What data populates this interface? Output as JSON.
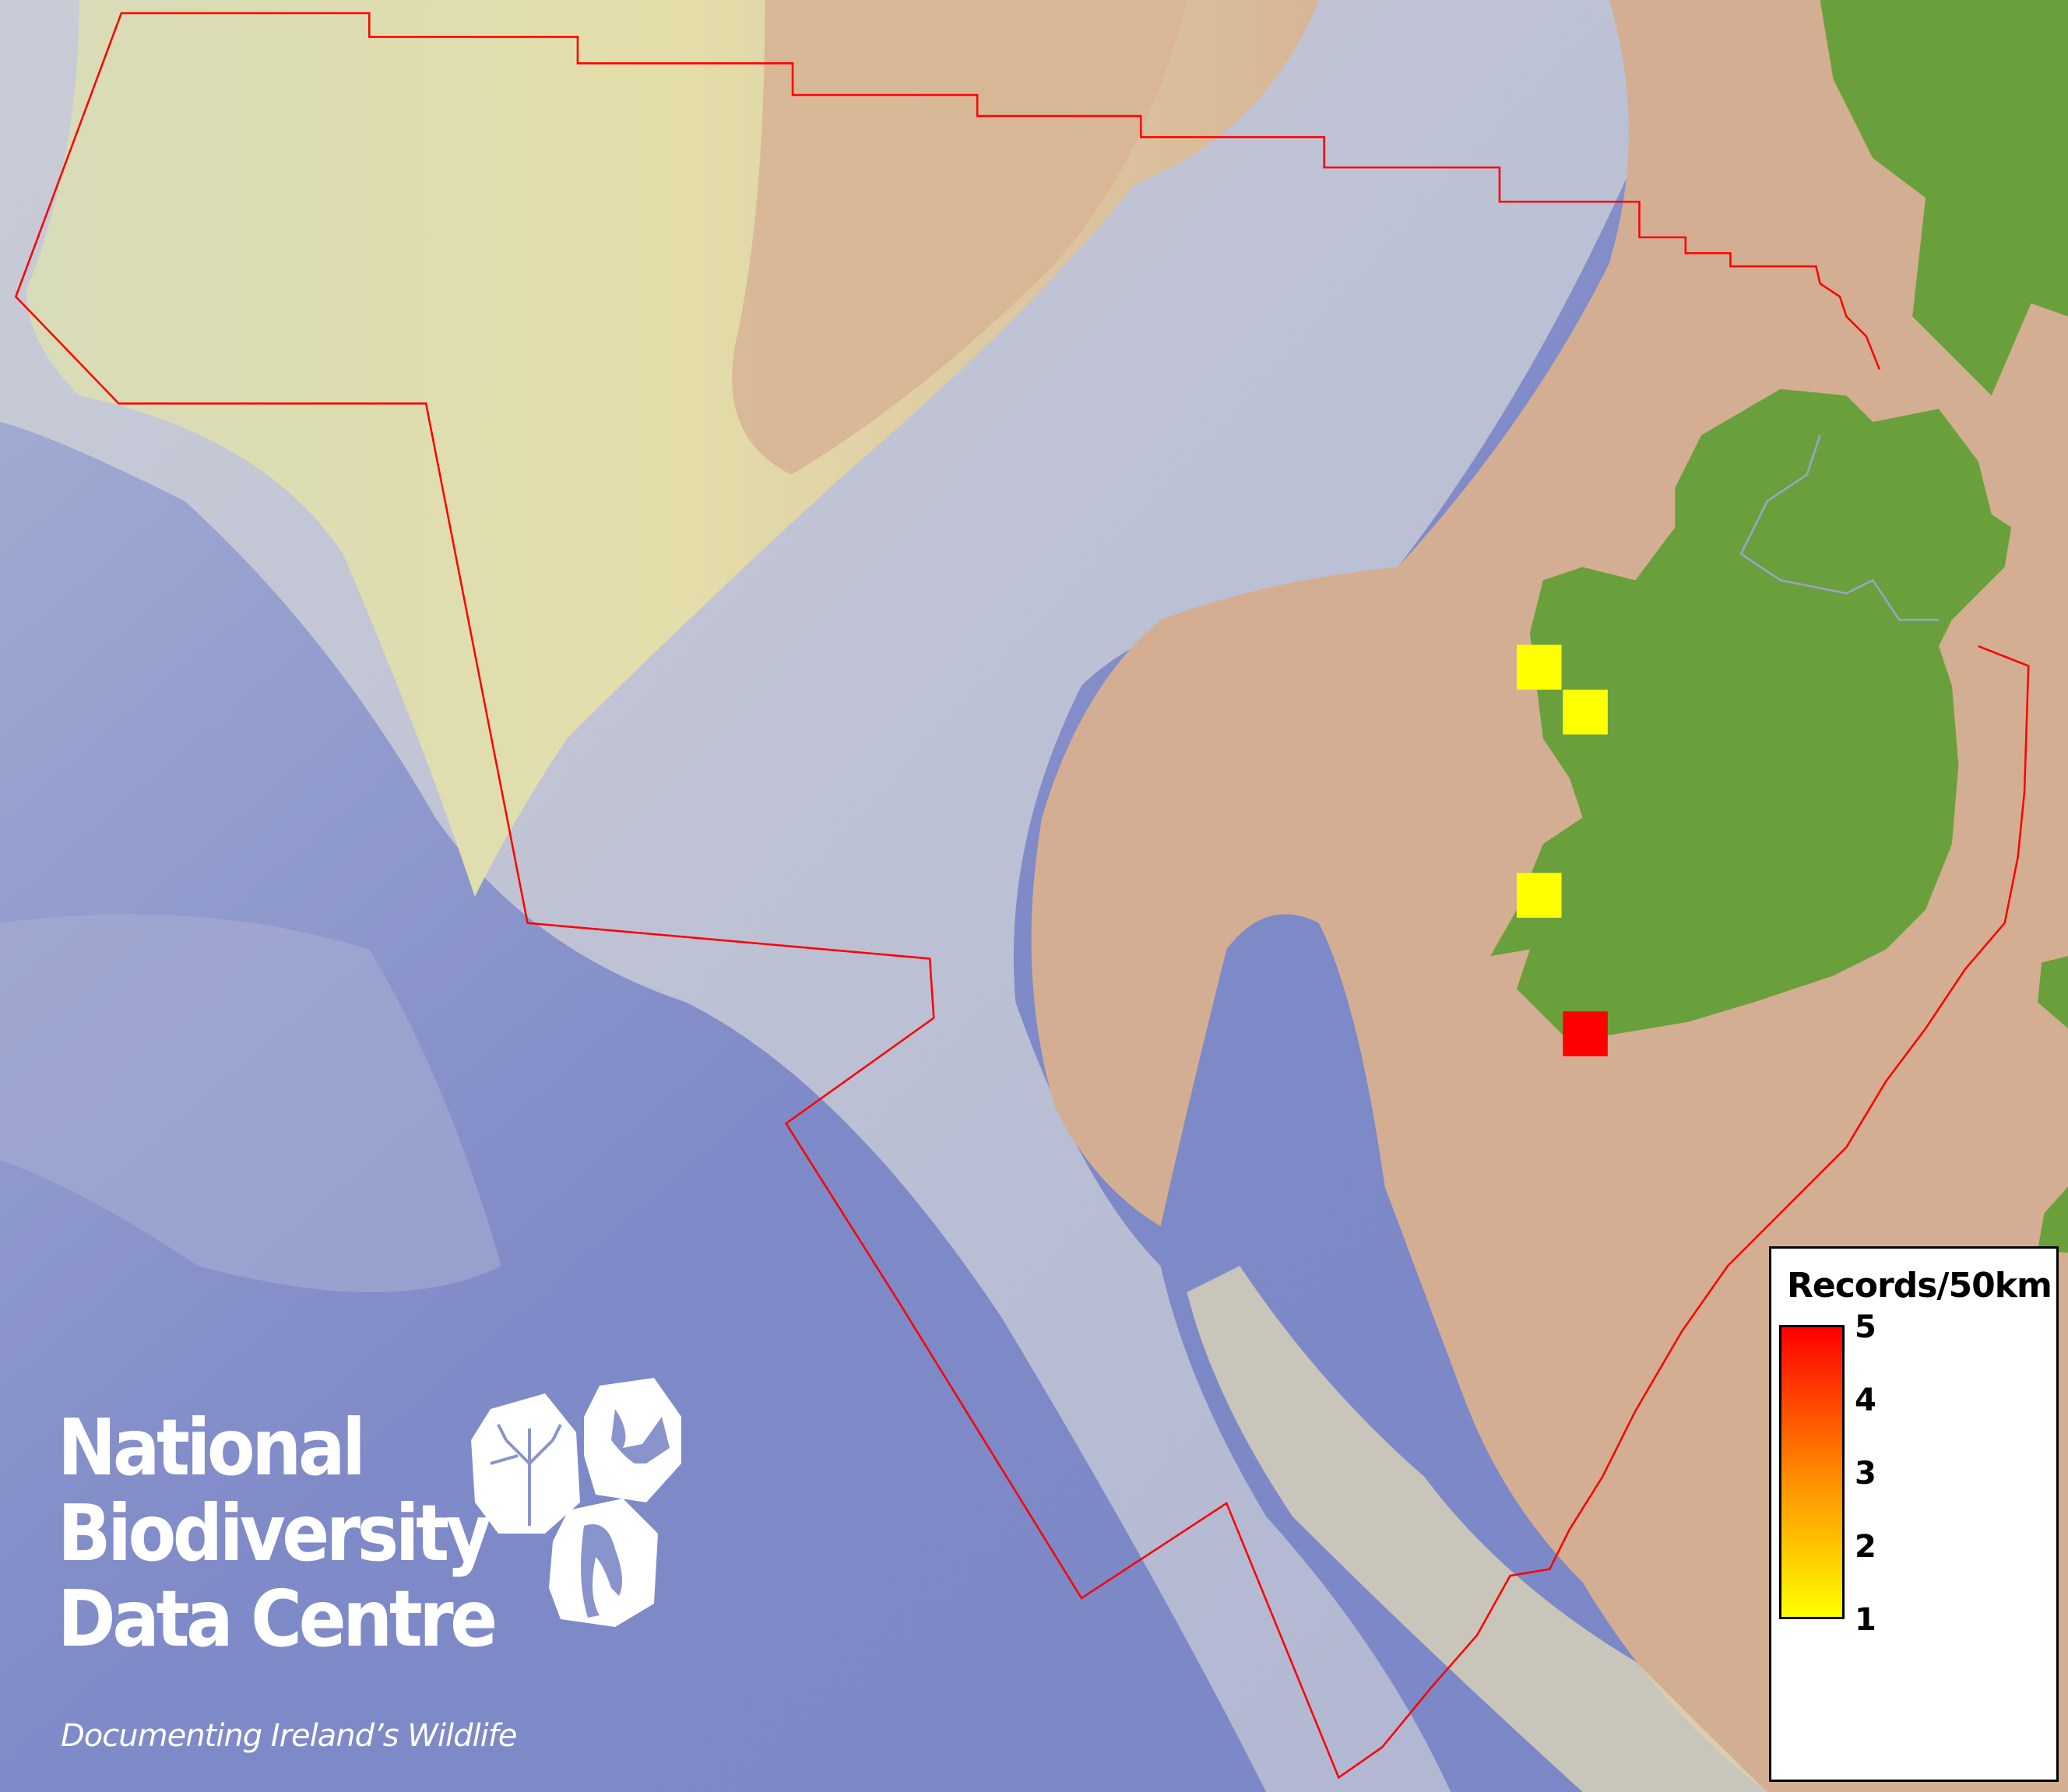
{
  "map": {
    "colors": {
      "deep_ocean": "#7f8ac8",
      "slope": "#c8cbd0",
      "shelf": "#d4ae92",
      "bank": "#e0dcae",
      "land": "#6aa03c",
      "boundary": "#ff0000"
    },
    "boundary_line": "red EEZ boundary",
    "grid_squares": [
      {
        "label": "square-1",
        "records": 1,
        "color": "#ffff00"
      },
      {
        "label": "square-2",
        "records": 1,
        "color": "#ffff00"
      },
      {
        "label": "square-3",
        "records": 1,
        "color": "#ffff00"
      },
      {
        "label": "square-4",
        "records": 5,
        "color": "#ff0000"
      }
    ]
  },
  "legend": {
    "title": "Records/50km",
    "min": 1,
    "max": 5,
    "min_color": "#ffff00",
    "max_color": "#ff0000",
    "ticks": [
      "5",
      "4",
      "3",
      "2",
      "1"
    ]
  },
  "logo": {
    "line1": "National",
    "line2": "Biodiversity",
    "line3": "Data Centre",
    "tagline": "Documenting Ireland’s Wildlife",
    "icons": [
      "plant-icon",
      "butterfly-icon",
      "seahorse-icon"
    ]
  }
}
